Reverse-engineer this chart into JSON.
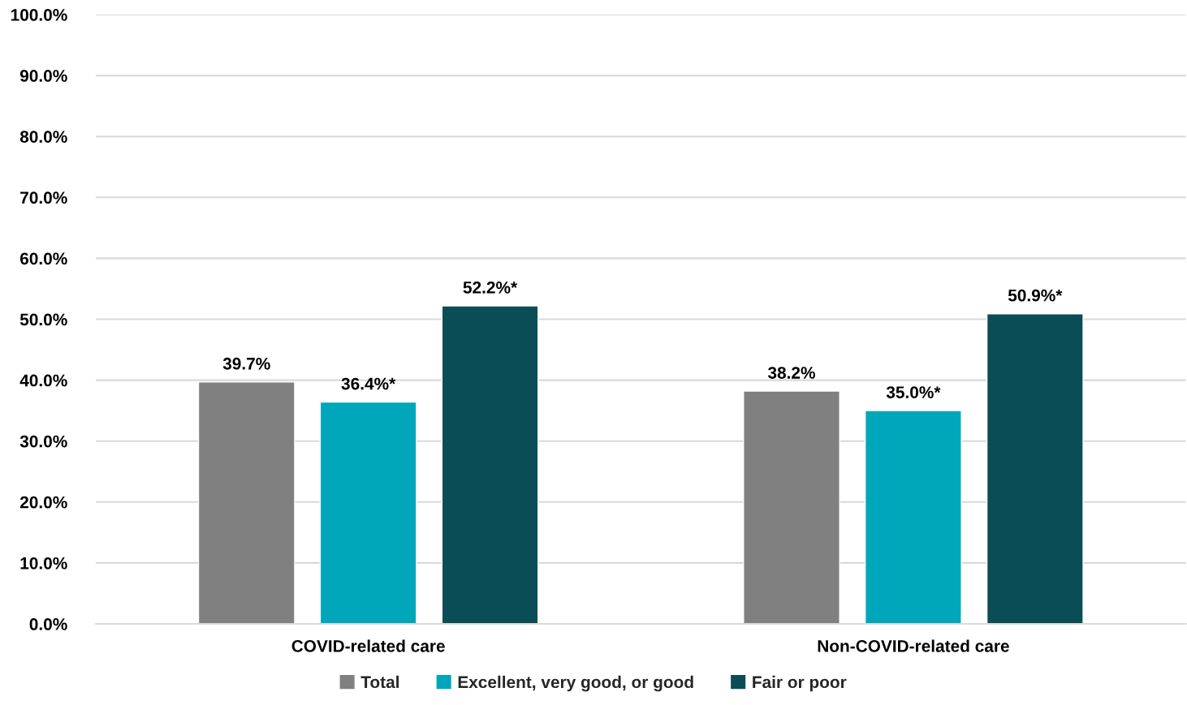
{
  "chart_data": {
    "type": "bar",
    "categories": [
      "COVID-related care",
      "Non-COVID-related care"
    ],
    "series": [
      {
        "name": "Total",
        "color": "#808080",
        "values": [
          39.7,
          38.2
        ],
        "value_labels": [
          "39.7%",
          "38.2%"
        ]
      },
      {
        "name": "Excellent, very good, or good",
        "color": "#00a6b9",
        "values": [
          36.4,
          35.0
        ],
        "value_labels": [
          "36.4%*",
          "35.0%*"
        ]
      },
      {
        "name": "Fair or poor",
        "color": "#0a4d56",
        "values": [
          52.2,
          50.9
        ],
        "value_labels": [
          "52.2%*",
          "50.9%*"
        ]
      }
    ],
    "ylim": [
      0,
      100
    ],
    "yticks": [
      {
        "value": 0,
        "label": "0.0%"
      },
      {
        "value": 10,
        "label": "10.0%"
      },
      {
        "value": 20,
        "label": "20.0%"
      },
      {
        "value": 30,
        "label": "30.0%"
      },
      {
        "value": 40,
        "label": "40.0%"
      },
      {
        "value": 50,
        "label": "50.0%"
      },
      {
        "value": 60,
        "label": "60.0%"
      },
      {
        "value": 70,
        "label": "70.0%"
      },
      {
        "value": 80,
        "label": "80.0%"
      },
      {
        "value": 90,
        "label": "90.0%"
      },
      {
        "value": 100,
        "label": "100.0%"
      }
    ],
    "grid": "y",
    "legend": "bottom"
  }
}
